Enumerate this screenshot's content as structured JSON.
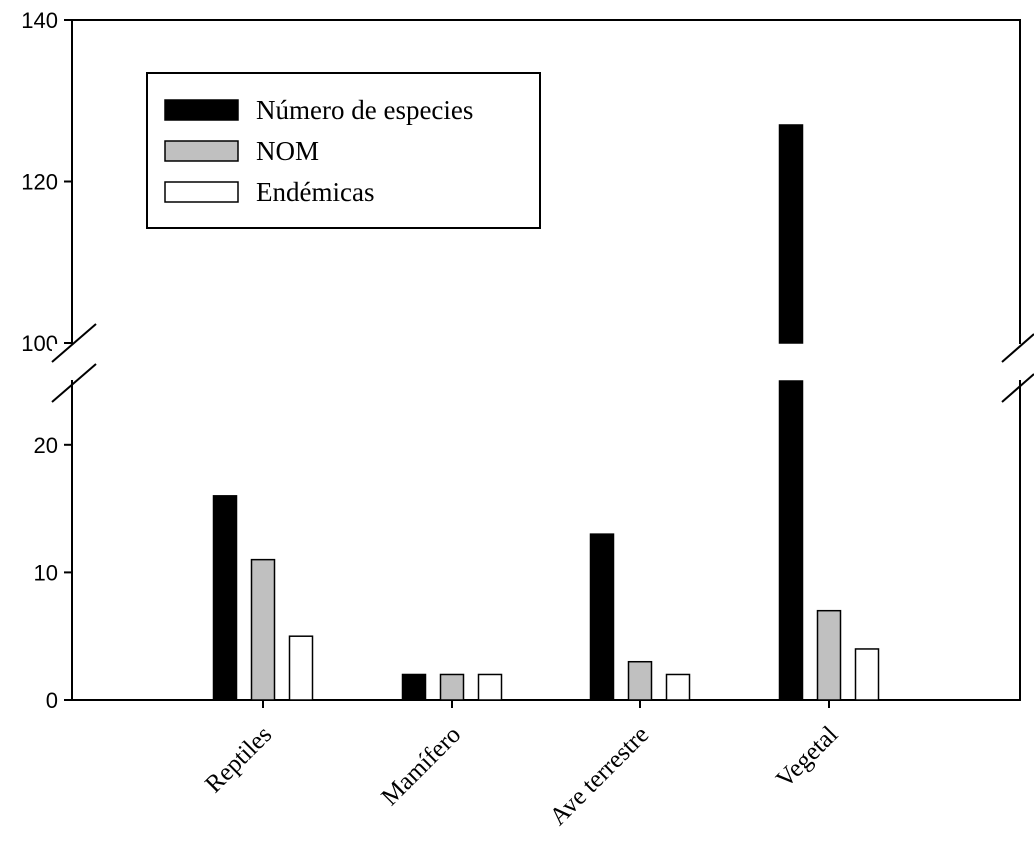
{
  "chart_data": {
    "type": "bar",
    "title": "",
    "xlabel": "",
    "ylabel": "",
    "categories": [
      "Reptiles",
      "Mamífero",
      "Ave terrestre",
      "Vegetal"
    ],
    "series": [
      {
        "name": "Número de especies",
        "values": [
          16,
          2,
          13,
          127
        ],
        "color": "#000000"
      },
      {
        "name": "NOM",
        "values": [
          11,
          2,
          3,
          7
        ],
        "color": "#c0c0c0"
      },
      {
        "name": "Endémicas",
        "values": [
          5,
          2,
          2,
          4
        ],
        "color": "#ffffff"
      }
    ],
    "y_axis": {
      "broken": true,
      "lower_range": [
        0,
        25
      ],
      "upper_range": [
        100,
        140
      ],
      "lower_ticks": [
        "0",
        "10",
        "20"
      ],
      "upper_ticks": [
        "100",
        "120",
        "140"
      ]
    },
    "grid": false,
    "legend_position": "top-left",
    "x_label_rotation": -45
  }
}
